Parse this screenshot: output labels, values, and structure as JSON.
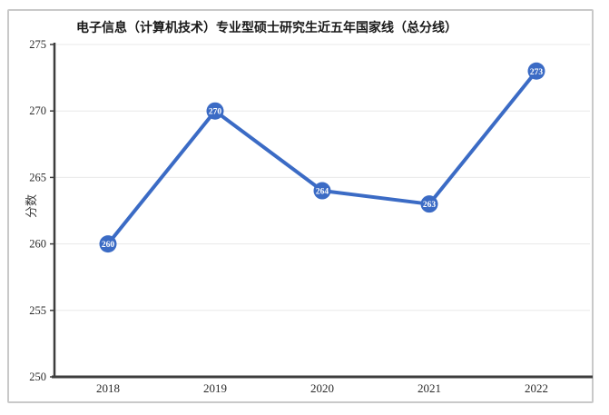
{
  "chart_data": {
    "type": "line",
    "title": "电子信息（计算机技术）专业型硕士研究生近五年国家线（总分线）",
    "ylabel": "分数",
    "xlabel": "",
    "categories": [
      "2018",
      "2019",
      "2020",
      "2021",
      "2022"
    ],
    "values": [
      260,
      270,
      264,
      263,
      273
    ],
    "point_labels": [
      "260",
      "270",
      "264",
      "263",
      "273"
    ],
    "ylim": [
      250,
      275
    ],
    "yticks": [
      250,
      255,
      260,
      265,
      270,
      275
    ],
    "grid": true,
    "legend_position": "none",
    "colors": {
      "line": "#3b6bc5",
      "marker_fill": "#3b6bc5",
      "marker_label": "#ffffff",
      "axis": "#3d3d3d",
      "grid": "#e8e8e8",
      "tick_text": "#2b2b2b",
      "title_text": "#1a1a1a",
      "frame_border": "#c9c9c9",
      "background": "#ffffff"
    }
  }
}
